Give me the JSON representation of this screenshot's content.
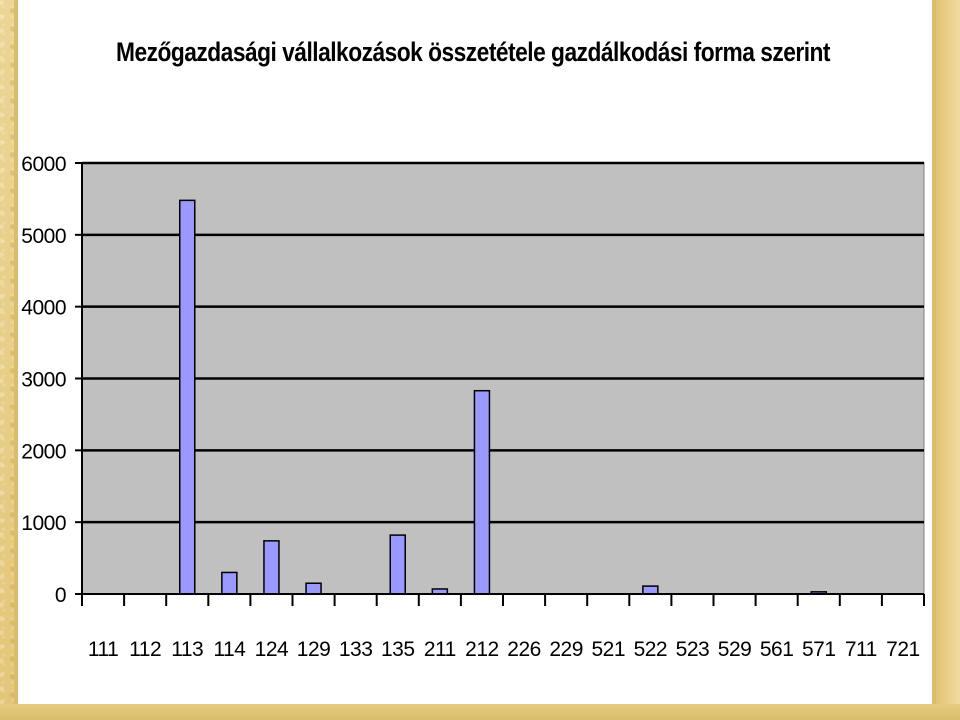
{
  "chart_data": {
    "type": "bar",
    "title": "Mezőgazdasági vállalkozások összetétele gazdálkodási forma szerint",
    "xlabel": "",
    "ylabel": "",
    "categories": [
      "111",
      "112",
      "113",
      "114",
      "124",
      "129",
      "133",
      "135",
      "211",
      "212",
      "226",
      "229",
      "521",
      "522",
      "523",
      "529",
      "561",
      "571",
      "711",
      "721"
    ],
    "values": [
      0,
      0,
      5480,
      300,
      740,
      150,
      0,
      820,
      70,
      2830,
      0,
      0,
      0,
      110,
      0,
      0,
      0,
      30,
      0,
      0
    ],
    "ylim": [
      0,
      6000
    ],
    "yticks": [
      0,
      1000,
      2000,
      3000,
      4000,
      5000,
      6000
    ],
    "grid": true,
    "legend": "none",
    "colors": {
      "bar_fill": "#9999ff",
      "bar_stroke": "#000000",
      "plot_background": "#c0c0c0",
      "gridline": "#000000"
    }
  }
}
